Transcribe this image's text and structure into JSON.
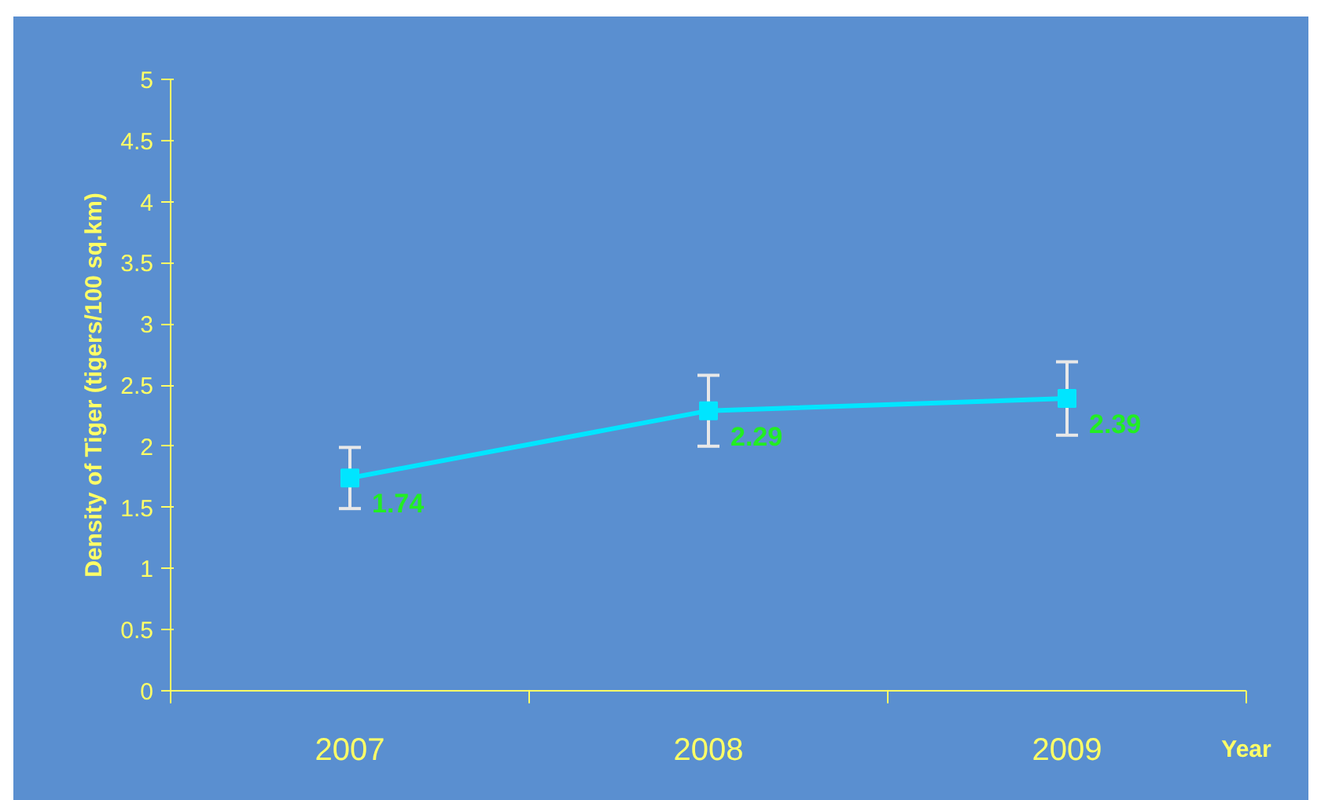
{
  "chart_data": {
    "type": "line",
    "categories": [
      "2007",
      "2008",
      "2009"
    ],
    "series": [
      {
        "color": "#00e5ff",
        "values": [
          1.74,
          2.29,
          2.39
        ],
        "errors": [
          0.25,
          0.29,
          0.3
        ]
      }
    ],
    "ylabel": "Density of Tiger (tigers/100 sq.km)",
    "xlabel": "Year",
    "ylim": [
      0,
      5
    ],
    "yticks": [
      0,
      0.5,
      1,
      1.5,
      2,
      2.5,
      3,
      3.5,
      4,
      4.5,
      5
    ],
    "data_labels": true,
    "marker": "square",
    "grid": false
  }
}
